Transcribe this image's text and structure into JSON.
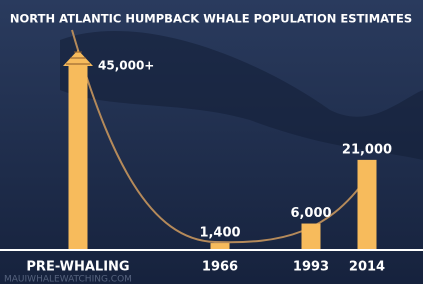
{
  "chart_data": {
    "type": "bar",
    "title": "NORTH ATLANTIC HUMPBACK WHALE POPULATION ESTIMATES",
    "categories": [
      "PRE-WHALING",
      "1966",
      "1993",
      "2014"
    ],
    "values": [
      45000,
      1400,
      6000,
      21000
    ],
    "value_labels": [
      "45,000+",
      "1,400",
      "6,000",
      "21,000"
    ],
    "color": "#f7bb5c",
    "watermark": "MAUIWHALEWATCHING.COM"
  }
}
